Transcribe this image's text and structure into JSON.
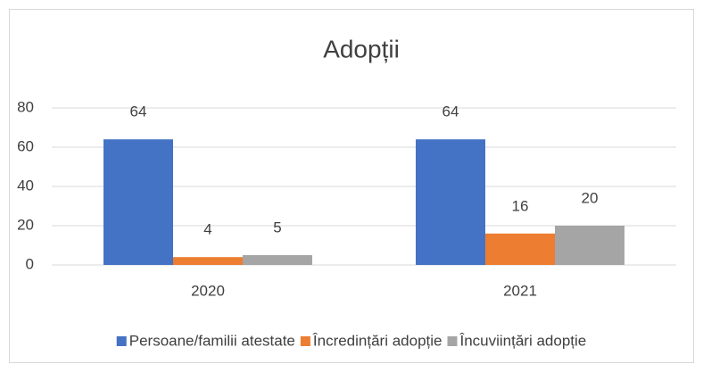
{
  "chart_data": {
    "type": "bar",
    "title": "Adopții",
    "categories": [
      "2020",
      "2021"
    ],
    "series": [
      {
        "name": "Persoane/familii atestate",
        "color": "#4472c4",
        "values": [
          64,
          64
        ]
      },
      {
        "name": "Încredințări adopție",
        "color": "#ed7d31",
        "values": [
          4,
          16
        ]
      },
      {
        "name": "Încuviințări adopție",
        "color": "#a5a5a5",
        "values": [
          5,
          20
        ]
      }
    ],
    "ylim": [
      0,
      80
    ],
    "yticks": [
      0,
      20,
      40,
      60,
      80
    ],
    "grid": true,
    "legend": "bottom"
  }
}
